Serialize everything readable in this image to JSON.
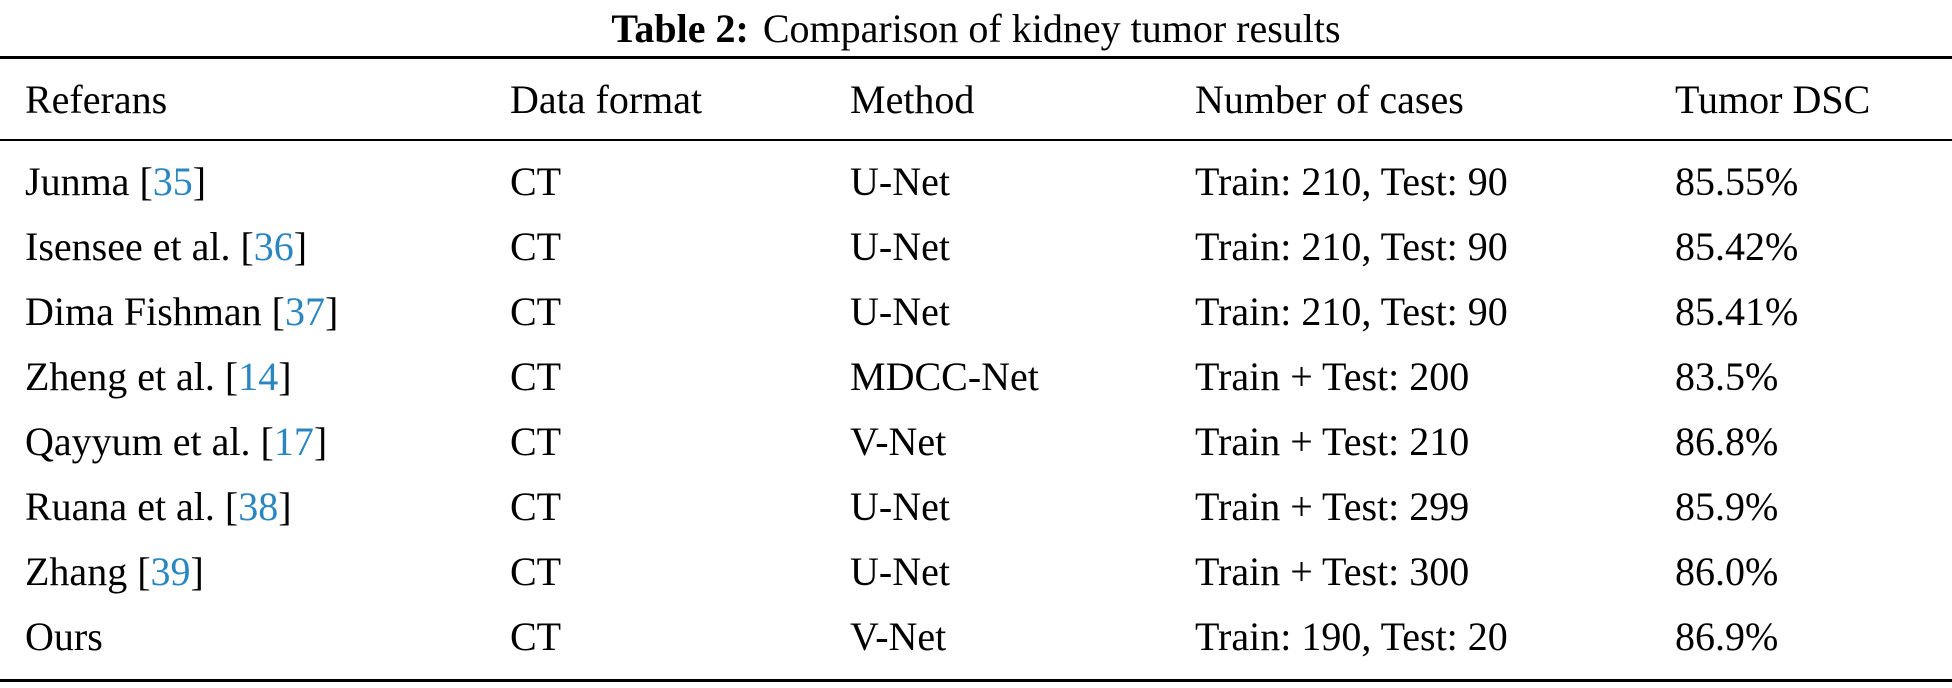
{
  "caption": {
    "label": "Table 2:",
    "text": "Comparison of kidney tumor results"
  },
  "colors": {
    "citation_link": "#2a86c0",
    "text": "#000000",
    "rule": "#000000"
  },
  "table": {
    "columns": [
      "Referans",
      "Data format",
      "Method",
      "Number of cases",
      "Tumor DSC"
    ],
    "rows": [
      {
        "name": "Junma ",
        "open": "[",
        "num": "35",
        "close": "]",
        "format": "CT",
        "method": "U-Net",
        "cases": "Train: 210, Test: 90",
        "dsc": "85.55%"
      },
      {
        "name": "Isensee et al. ",
        "open": "[",
        "num": "36",
        "close": "]",
        "format": "CT",
        "method": "U-Net",
        "cases": "Train: 210, Test: 90",
        "dsc": "85.42%"
      },
      {
        "name": "Dima Fishman ",
        "open": "[",
        "num": "37",
        "close": "]",
        "format": "CT",
        "method": "U-Net",
        "cases": "Train: 210, Test: 90",
        "dsc": "85.41%"
      },
      {
        "name": "Zheng et al. ",
        "open": "[",
        "num": "14",
        "close": "]",
        "format": "CT",
        "method": "MDCC-Net",
        "cases": "Train + Test: 200",
        "dsc": "83.5%"
      },
      {
        "name": "Qayyum et al. ",
        "open": "[",
        "num": "17",
        "close": "]",
        "format": "CT",
        "method": "V-Net",
        "cases": "Train + Test: 210",
        "dsc": "86.8%"
      },
      {
        "name": "Ruana et al. ",
        "open": "[",
        "num": "38",
        "close": "]",
        "format": "CT",
        "method": "U-Net",
        "cases": "Train + Test: 299",
        "dsc": "85.9%"
      },
      {
        "name": "Zhang ",
        "open": "[",
        "num": "39",
        "close": "]",
        "format": "CT",
        "method": "U-Net",
        "cases": "Train + Test: 300",
        "dsc": "86.0%"
      },
      {
        "name": "Ours",
        "format": "CT",
        "method": "V-Net",
        "cases": "Train: 190, Test: 20",
        "dsc": "86.9%"
      }
    ]
  }
}
